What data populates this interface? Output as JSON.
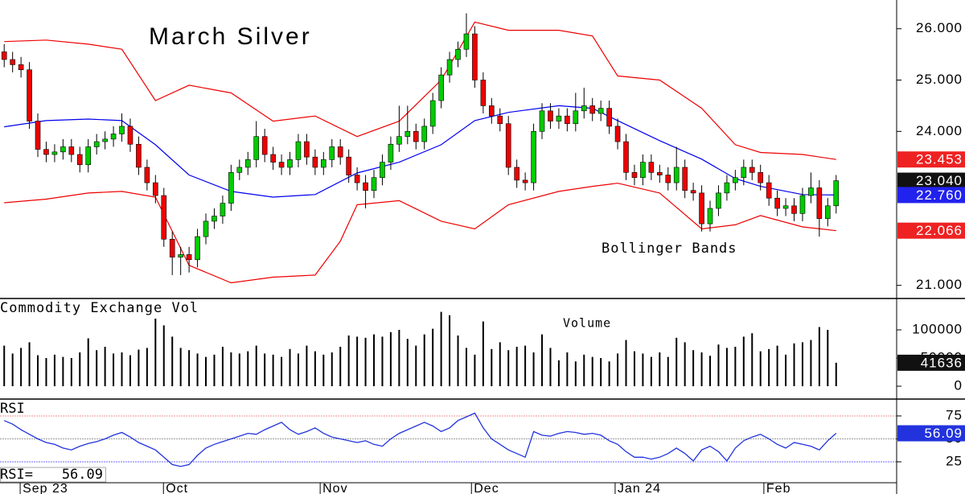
{
  "chart_data": {
    "type": "candlestick",
    "title": "March Silver",
    "annotation": "Bollinger Bands",
    "up_color": "#00cc00",
    "down_color": "#ee0000",
    "xlim": [
      -0.5,
      106.2
    ],
    "ylim": [
      20.76,
      26.56
    ],
    "yticks": [
      {
        "value": 21,
        "label": "21.000"
      },
      {
        "value": 24,
        "label": "24.000"
      },
      {
        "value": 25,
        "label": "25.000"
      },
      {
        "value": 26,
        "label": "26.000"
      }
    ],
    "xticks": [
      {
        "value": 1.9,
        "label": "Sep 23"
      },
      {
        "value": 18.95,
        "label": "Oct"
      },
      {
        "value": 37.6,
        "label": "Nov"
      },
      {
        "value": 55.6,
        "label": "Dec"
      },
      {
        "value": 72.7,
        "label": "Jan 24"
      },
      {
        "value": 90.4,
        "label": "Feb"
      }
    ],
    "x": [
      0,
      1,
      2,
      3,
      4,
      5,
      6,
      7,
      8,
      9,
      10,
      11,
      12,
      13,
      14,
      15,
      16,
      17,
      18,
      19,
      20,
      21,
      22,
      23,
      24,
      25,
      26,
      27,
      28,
      29,
      30,
      31,
      32,
      33,
      34,
      35,
      36,
      37,
      38,
      39,
      40,
      41,
      42,
      43,
      44,
      45,
      46,
      47,
      48,
      49,
      50,
      51,
      52,
      53,
      54,
      55,
      56,
      57,
      58,
      59,
      60,
      61,
      62,
      63,
      64,
      65,
      66,
      67,
      68,
      69,
      70,
      71,
      72,
      73,
      74,
      75,
      76,
      77,
      78,
      79,
      80,
      81,
      82,
      83,
      84,
      85,
      86,
      87,
      88,
      89,
      90,
      91,
      92,
      93,
      94,
      95,
      96,
      97,
      98,
      99
    ],
    "open": [
      25.55,
      25.4,
      25.3,
      25.2,
      24.2,
      23.65,
      23.55,
      23.6,
      23.7,
      23.55,
      23.35,
      23.7,
      23.8,
      23.85,
      23.95,
      24.1,
      23.75,
      23.3,
      23.0,
      22.75,
      21.9,
      21.55,
      21.6,
      21.5,
      21.95,
      22.25,
      22.35,
      22.6,
      23.2,
      23.3,
      23.45,
      23.9,
      23.55,
      23.4,
      23.3,
      23.45,
      23.8,
      23.5,
      23.3,
      23.45,
      23.7,
      23.5,
      23.15,
      23.0,
      22.85,
      23.1,
      23.4,
      23.75,
      23.9,
      24.0,
      23.8,
      24.1,
      24.6,
      25.1,
      25.4,
      25.6,
      25.9,
      25.0,
      24.5,
      24.3,
      24.15,
      23.3,
      23.05,
      23.0,
      24.0,
      24.4,
      24.2,
      24.3,
      24.15,
      24.4,
      24.5,
      24.35,
      24.45,
      24.1,
      23.8,
      23.2,
      23.1,
      23.4,
      23.2,
      23.15,
      23.0,
      23.3,
      22.85,
      22.8,
      22.2,
      22.5,
      22.8,
      23.0,
      23.1,
      23.3,
      23.2,
      23.0,
      22.7,
      22.5,
      22.55,
      22.4,
      22.75,
      22.9,
      22.3,
      22.55
    ],
    "high": [
      25.7,
      25.55,
      25.45,
      25.35,
      24.35,
      23.8,
      23.75,
      23.85,
      23.85,
      23.7,
      23.85,
      23.95,
      24.0,
      24.1,
      24.35,
      24.25,
      23.9,
      23.45,
      23.15,
      22.9,
      22.05,
      21.75,
      21.75,
      22.1,
      22.4,
      22.5,
      22.75,
      23.35,
      23.45,
      23.6,
      24.2,
      24.05,
      23.7,
      23.55,
      23.6,
      23.95,
      23.95,
      23.65,
      23.6,
      23.85,
      23.85,
      23.65,
      23.3,
      23.15,
      23.25,
      23.55,
      23.9,
      24.5,
      24.5,
      24.15,
      24.25,
      24.75,
      25.25,
      25.55,
      25.75,
      26.3,
      26.05,
      25.15,
      24.65,
      24.45,
      24.3,
      23.45,
      23.2,
      24.15,
      24.55,
      24.55,
      24.45,
      24.45,
      24.75,
      24.85,
      24.65,
      24.6,
      24.6,
      24.25,
      23.95,
      23.35,
      23.55,
      23.55,
      23.35,
      23.3,
      23.7,
      23.45,
      23.0,
      22.95,
      22.65,
      22.95,
      23.15,
      23.25,
      23.45,
      23.45,
      23.35,
      23.15,
      22.85,
      22.7,
      22.7,
      22.9,
      23.2,
      23.05,
      22.7,
      23.15
    ],
    "low": [
      25.25,
      25.15,
      25.05,
      24.05,
      23.5,
      23.4,
      23.4,
      23.45,
      23.4,
      23.2,
      23.2,
      23.55,
      23.65,
      23.7,
      23.8,
      23.6,
      23.15,
      22.85,
      22.6,
      21.75,
      21.2,
      21.2,
      21.25,
      21.35,
      21.8,
      22.1,
      22.2,
      22.45,
      23.05,
      23.15,
      23.3,
      23.4,
      23.25,
      23.15,
      23.15,
      23.3,
      23.35,
      23.15,
      23.15,
      23.3,
      23.35,
      23.0,
      22.85,
      22.5,
      22.7,
      22.95,
      23.25,
      23.6,
      23.75,
      23.65,
      23.65,
      23.95,
      24.45,
      24.95,
      25.25,
      25.45,
      24.85,
      24.35,
      24.15,
      24.0,
      23.15,
      22.9,
      22.85,
      22.85,
      23.85,
      24.05,
      24.05,
      24.0,
      24.0,
      24.25,
      24.2,
      24.2,
      23.95,
      23.65,
      23.05,
      22.95,
      22.95,
      23.05,
      23.0,
      22.85,
      22.85,
      22.7,
      22.65,
      22.05,
      22.05,
      22.35,
      22.65,
      22.85,
      22.95,
      23.05,
      22.85,
      22.55,
      22.35,
      22.35,
      22.25,
      22.25,
      22.6,
      21.95,
      22.15,
      22.4
    ],
    "close": [
      25.4,
      25.3,
      25.2,
      24.2,
      23.65,
      23.55,
      23.6,
      23.7,
      23.55,
      23.35,
      23.7,
      23.8,
      23.85,
      23.95,
      24.1,
      23.75,
      23.3,
      23.0,
      22.75,
      21.9,
      21.55,
      21.6,
      21.5,
      21.95,
      22.25,
      22.35,
      22.6,
      23.2,
      23.3,
      23.45,
      23.9,
      23.55,
      23.4,
      23.3,
      23.45,
      23.8,
      23.5,
      23.3,
      23.45,
      23.7,
      23.5,
      23.15,
      23.0,
      22.85,
      23.1,
      23.4,
      23.75,
      23.9,
      24.0,
      23.8,
      24.1,
      24.6,
      25.1,
      25.4,
      25.6,
      25.9,
      25.0,
      24.5,
      24.3,
      24.15,
      23.3,
      23.05,
      23.0,
      24.0,
      24.4,
      24.2,
      24.3,
      24.15,
      24.4,
      24.5,
      24.35,
      24.45,
      24.1,
      23.8,
      23.2,
      23.1,
      23.4,
      23.2,
      23.15,
      23.0,
      23.3,
      22.85,
      22.8,
      22.2,
      22.5,
      22.8,
      23.0,
      23.1,
      23.3,
      23.2,
      23.0,
      22.7,
      22.5,
      22.55,
      22.4,
      22.75,
      22.9,
      22.3,
      22.55,
      23.04
    ],
    "series": [
      {
        "color": "#ee0000",
        "x": [
          0,
          5,
          10,
          14,
          18,
          22,
          27,
          32,
          37,
          42,
          47,
          52,
          56,
          60,
          66,
          70,
          73,
          78,
          83,
          87,
          90,
          95,
          99
        ],
        "values": [
          25.75,
          25.78,
          25.7,
          25.6,
          24.6,
          24.9,
          24.75,
          24.2,
          24.3,
          23.9,
          24.2,
          25.0,
          26.13,
          25.97,
          25.97,
          25.86,
          25.08,
          25.0,
          24.45,
          23.74,
          23.59,
          23.55,
          23.453
        ]
      },
      {
        "color": "#0000ee",
        "x": [
          0,
          5,
          10,
          14,
          18,
          22,
          27,
          32,
          37,
          42,
          47,
          52,
          56,
          60,
          66,
          70,
          73,
          78,
          83,
          87,
          90,
          95,
          99
        ],
        "values": [
          24.09,
          24.21,
          24.24,
          24.21,
          23.74,
          23.15,
          22.83,
          22.72,
          22.77,
          23.19,
          23.4,
          23.74,
          24.21,
          24.37,
          24.5,
          24.45,
          24.21,
          23.82,
          23.46,
          23.08,
          22.93,
          22.77,
          22.76
        ]
      },
      {
        "color": "#ee0000",
        "x": [
          0,
          5,
          10,
          14,
          18,
          22,
          27,
          32,
          37,
          40,
          42,
          47,
          52,
          56,
          60,
          66,
          70,
          73,
          78,
          83,
          87,
          90,
          95,
          99
        ],
        "values": [
          22.61,
          22.68,
          22.8,
          22.83,
          22.72,
          21.39,
          21.05,
          21.16,
          21.2,
          21.86,
          22.57,
          22.65,
          22.25,
          22.1,
          22.57,
          22.83,
          22.93,
          22.99,
          22.8,
          22.1,
          22.18,
          22.36,
          22.14,
          22.066
        ]
      }
    ],
    "value_boxes": [
      {
        "value": 23.453,
        "label": "23.453",
        "color": "#ee2222"
      },
      {
        "value": 23.04,
        "label": "23.040",
        "color": "#111111"
      },
      {
        "value": 22.76,
        "label": "22.760",
        "color": "#2222ee"
      },
      {
        "value": 22.066,
        "label": "22.066",
        "color": "#ee2222"
      }
    ],
    "volume": {
      "type": "bar",
      "title": "Commodity Exchange Vol",
      "annotation": "Volume",
      "color": "#000000",
      "ylim": [
        -21400,
        154300
      ],
      "yticks": [
        0,
        50000,
        100000
      ],
      "values": [
        72000,
        58000,
        68000,
        78000,
        55000,
        50000,
        56000,
        52000,
        50000,
        60000,
        85000,
        64000,
        70000,
        58000,
        60000,
        55000,
        65000,
        68000,
        120000,
        108000,
        88000,
        68000,
        64000,
        58000,
        52000,
        56000,
        70000,
        60000,
        58000,
        62000,
        72000,
        58000,
        56000,
        52000,
        66000,
        58000,
        72000,
        62000,
        56000,
        60000,
        70000,
        90000,
        88000,
        86000,
        92000,
        88000,
        96000,
        100000,
        84000,
        72000,
        92000,
        102000,
        132000,
        126000,
        90000,
        68000,
        56000,
        115000,
        66000,
        78000,
        64000,
        70000,
        72000,
        60000,
        92000,
        68000,
        46000,
        60000,
        44000,
        56000,
        52000,
        50000,
        44000,
        58000,
        82000,
        62000,
        58000,
        52000,
        60000,
        52000,
        86000,
        78000,
        64000,
        60000,
        54000,
        74000,
        68000,
        70000,
        88000,
        94000,
        62000,
        66000,
        72000,
        56000,
        76000,
        78000,
        82000,
        105000,
        100000,
        41636
      ],
      "value_box": {
        "value": 41636,
        "color": "#111111"
      }
    },
    "rsi": {
      "type": "line",
      "title": "RSI",
      "readout_label": "RSI=",
      "color": "#2233dd",
      "ylim": [
        2.2,
        92.5
      ],
      "yticks": [
        25,
        50,
        75
      ],
      "levels": [
        {
          "value": 75,
          "color": "#f09090"
        },
        {
          "value": 50,
          "color": "#999999"
        },
        {
          "value": 25,
          "color": "#6666ff"
        }
      ],
      "values": [
        70,
        66,
        60,
        55,
        50,
        46,
        44,
        40,
        38,
        42,
        45,
        47,
        50,
        54,
        57,
        52,
        46,
        42,
        38,
        30,
        22,
        20,
        22,
        32,
        40,
        44,
        47,
        50,
        53,
        56,
        55,
        60,
        64,
        68,
        60,
        55,
        58,
        62,
        56,
        52,
        50,
        48,
        46,
        48,
        44,
        42,
        50,
        56,
        60,
        64,
        68,
        64,
        58,
        62,
        70,
        74,
        78,
        62,
        50,
        44,
        38,
        34,
        30,
        58,
        54,
        53,
        56,
        58,
        57,
        55,
        56,
        54,
        48,
        44,
        36,
        30,
        30,
        28,
        30,
        34,
        40,
        34,
        26,
        38,
        42,
        36,
        26,
        40,
        48,
        52,
        55,
        50,
        44,
        40,
        46,
        44,
        42,
        38,
        48,
        56.09
      ],
      "value_box": {
        "value": 56.09,
        "color": "#2233dd"
      }
    }
  }
}
